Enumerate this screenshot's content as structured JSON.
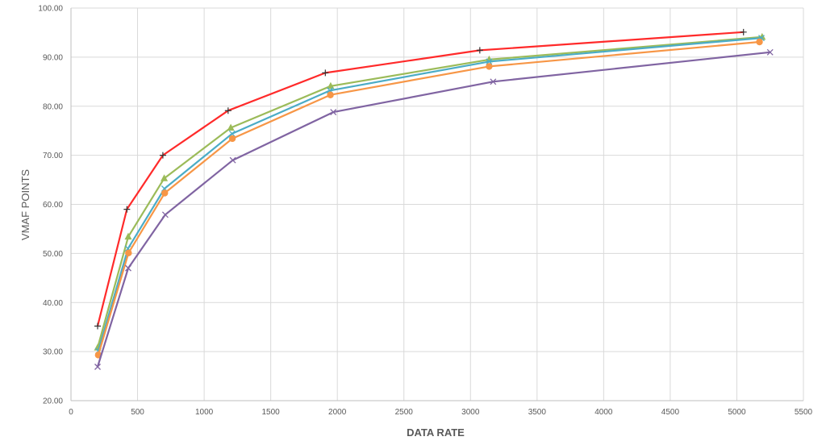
{
  "chart_data": {
    "type": "line",
    "title": "",
    "xlabel": "DATA RATE",
    "ylabel": "VMAF POINTS",
    "xlim": [
      0,
      5500
    ],
    "ylim": [
      20,
      100
    ],
    "x_ticks": [
      "0",
      "500",
      "1000",
      "1500",
      "2000",
      "2500",
      "3000",
      "3500",
      "4000",
      "4500",
      "5000",
      "5500"
    ],
    "y_ticks": [
      "20.00",
      "30.00",
      "40.00",
      "50.00",
      "60.00",
      "70.00",
      "80.00",
      "90.00",
      "100.00"
    ],
    "grid": "vertical and horizontal",
    "legend": "none",
    "series": [
      {
        "color": "#ff2a2a",
        "marker": "plus",
        "points": [
          [
            200,
            35.2
          ],
          [
            420,
            59.0
          ],
          [
            690,
            70.0
          ],
          [
            1180,
            79.1
          ],
          [
            1910,
            86.8
          ],
          [
            3070,
            91.4
          ],
          [
            5050,
            95.1
          ]
        ]
      },
      {
        "color": "#9bbb59",
        "marker": "triangle",
        "points": [
          [
            200,
            30.8
          ],
          [
            430,
            53.4
          ],
          [
            700,
            65.3
          ],
          [
            1200,
            75.6
          ],
          [
            1950,
            84.1
          ],
          [
            3140,
            89.5
          ],
          [
            5190,
            94.1
          ]
        ]
      },
      {
        "color": "#4bacc6",
        "marker": "x",
        "points": [
          [
            205,
            30.1
          ],
          [
            428,
            51.0
          ],
          [
            702,
            63.2
          ],
          [
            1210,
            74.4
          ],
          [
            1945,
            83.2
          ],
          [
            3140,
            89.1
          ],
          [
            5185,
            93.9
          ]
        ]
      },
      {
        "color": "#f79646",
        "marker": "circle",
        "points": [
          [
            205,
            29.3
          ],
          [
            432,
            50.1
          ],
          [
            704,
            62.3
          ],
          [
            1212,
            73.4
          ],
          [
            1948,
            82.3
          ],
          [
            3140,
            88.1
          ],
          [
            5170,
            93.1
          ]
        ]
      },
      {
        "color": "#8064a2",
        "marker": "x",
        "points": [
          [
            200,
            26.9
          ],
          [
            430,
            47.0
          ],
          [
            708,
            57.9
          ],
          [
            1215,
            69.0
          ],
          [
            1970,
            78.8
          ],
          [
            3170,
            85.0
          ],
          [
            5250,
            91.0
          ]
        ]
      }
    ]
  }
}
